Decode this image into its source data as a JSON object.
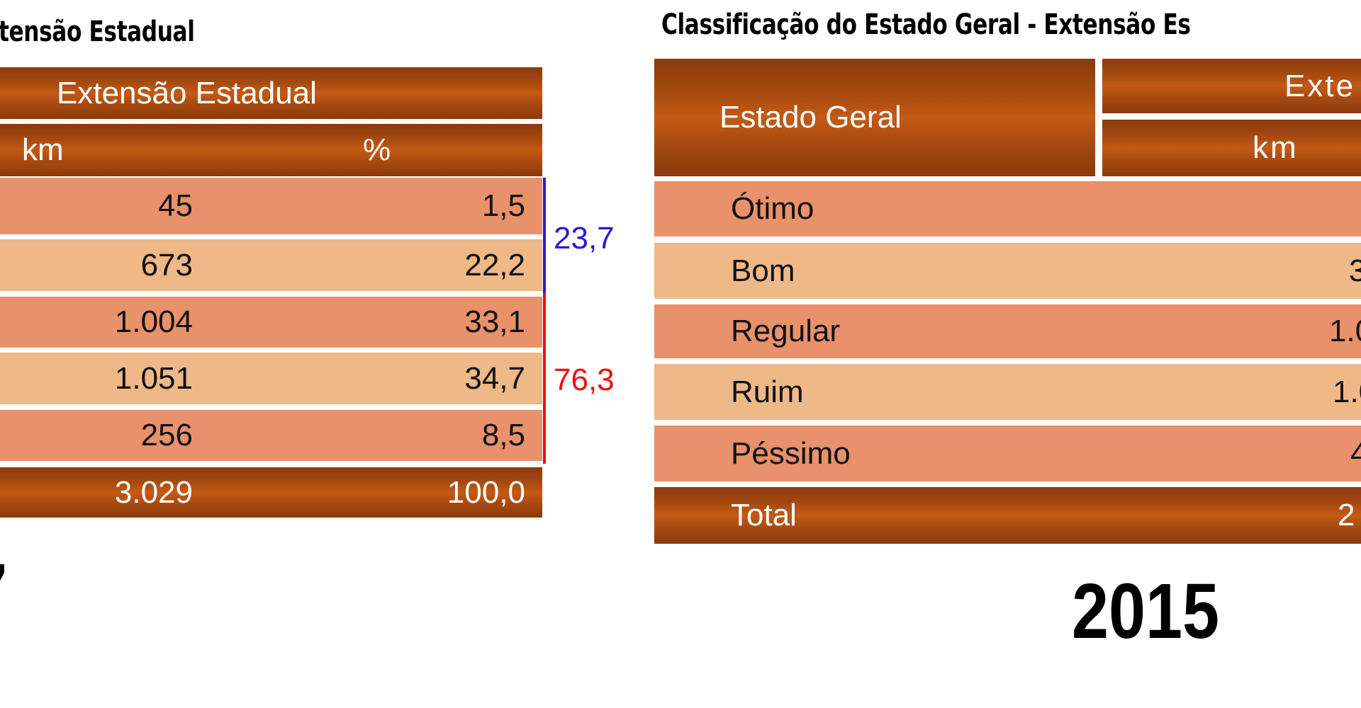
{
  "left": {
    "title": "tensão Estadual",
    "header": "Extensão Estadual",
    "col_km": "km",
    "col_pct": "%",
    "rows": [
      {
        "km": "45",
        "pct": "1,5"
      },
      {
        "km": "673",
        "pct": "22,2"
      },
      {
        "km": "1.004",
        "pct": "33,1"
      },
      {
        "km": "1.051",
        "pct": "34,7"
      },
      {
        "km": "256",
        "pct": "8,5"
      }
    ],
    "total": {
      "km": "3.029",
      "pct": "100,0"
    },
    "bracket_good": {
      "value": "23,7",
      "color": "#2a1adb"
    },
    "bracket_bad": {
      "value": "76,3",
      "color": "#ee1111"
    },
    "year_fragment": "7"
  },
  "right": {
    "title": "Classificação do Estado Geral - Extensão Es",
    "header_estado": "Estado Geral",
    "header_ext": "Exte",
    "col_km": "km",
    "rows": [
      {
        "label": "Ótimo",
        "km": ""
      },
      {
        "label": "Bom",
        "km": "3"
      },
      {
        "label": "Regular",
        "km": "1.0"
      },
      {
        "label": "Ruim",
        "km": "1.0"
      },
      {
        "label": "Péssimo",
        "km": "4"
      }
    ],
    "total": {
      "label": "Total",
      "km": "2"
    },
    "year": "2015"
  }
}
